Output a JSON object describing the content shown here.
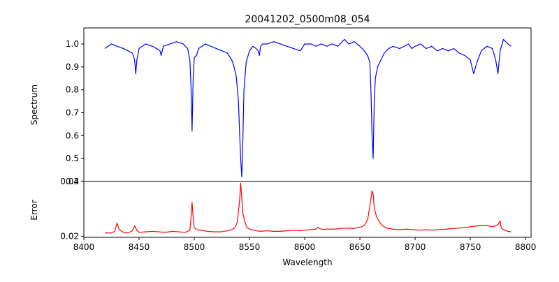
{
  "chart_data": [
    {
      "type": "line",
      "title": "20041202_0500m08_054",
      "ylabel": "Spectrum",
      "xlabel": "",
      "xlim": [
        8400,
        8805
      ],
      "ylim": [
        0.4,
        1.07
      ],
      "xticks": [
        8400,
        8450,
        8500,
        8550,
        8600,
        8650,
        8700,
        8750,
        8800
      ],
      "yticks": [
        0.4,
        0.5,
        0.6,
        0.7,
        0.8,
        0.9,
        1.0
      ],
      "ytick_labels": [
        "0.4",
        "0.5",
        "0.6",
        "0.7",
        "0.8",
        "0.9",
        "1.0"
      ],
      "grid": false,
      "series": [
        {
          "color": "#0000ff",
          "x": [
            8419,
            8425,
            8430,
            8436,
            8440,
            8444,
            8446,
            8447,
            8448,
            8450,
            8456,
            8462,
            8466,
            8469,
            8470,
            8472,
            8478,
            8484,
            8490,
            8494,
            8496,
            8497,
            8498,
            8499,
            8500,
            8502,
            8504,
            8507,
            8510,
            8515,
            8520,
            8525,
            8530,
            8534,
            8536,
            8538,
            8540,
            8541,
            8542,
            8543,
            8544,
            8545,
            8547,
            8550,
            8553,
            8556,
            8558,
            8559,
            8560,
            8562,
            8566,
            8572,
            8578,
            8584,
            8590,
            8596,
            8600,
            8606,
            8610,
            8615,
            8620,
            8625,
            8630,
            8636,
            8640,
            8645,
            8650,
            8654,
            8657,
            8659,
            8660,
            8661,
            8662,
            8663,
            8664,
            8666,
            8669,
            8672,
            8676,
            8680,
            8686,
            8690,
            8694,
            8697,
            8700,
            8705,
            8710,
            8715,
            8720,
            8725,
            8730,
            8735,
            8740,
            8745,
            8750,
            8753,
            8756,
            8760,
            8765,
            8770,
            8773,
            8775,
            8777,
            8780,
            8784,
            8787
          ],
          "values": [
            0.98,
            1.0,
            0.99,
            0.98,
            0.97,
            0.96,
            0.93,
            0.87,
            0.93,
            0.98,
            1.0,
            0.99,
            0.98,
            0.97,
            0.95,
            0.99,
            1.0,
            1.01,
            1.0,
            0.98,
            0.93,
            0.82,
            0.62,
            0.85,
            0.94,
            0.95,
            0.98,
            0.99,
            1.0,
            0.99,
            0.98,
            0.97,
            0.96,
            0.93,
            0.9,
            0.86,
            0.75,
            0.62,
            0.5,
            0.42,
            0.58,
            0.8,
            0.92,
            0.97,
            0.99,
            0.98,
            0.97,
            0.95,
            0.99,
            1.0,
            1.0,
            1.01,
            1.0,
            0.99,
            0.98,
            0.97,
            1.0,
            1.0,
            0.99,
            1.0,
            0.99,
            1.0,
            0.99,
            1.02,
            1.0,
            1.01,
            0.99,
            0.97,
            0.95,
            0.92,
            0.8,
            0.6,
            0.5,
            0.75,
            0.85,
            0.9,
            0.93,
            0.96,
            0.98,
            0.99,
            0.98,
            0.99,
            1.0,
            0.98,
            0.99,
            1.0,
            0.98,
            0.99,
            0.97,
            0.98,
            0.97,
            0.98,
            0.96,
            0.95,
            0.93,
            0.87,
            0.92,
            0.97,
            0.99,
            0.98,
            0.93,
            0.87,
            0.97,
            1.02,
            1.0,
            0.99
          ]
        }
      ]
    },
    {
      "type": "line",
      "title": "",
      "ylabel": "Error",
      "xlabel": "Wavelength",
      "xlim": [
        8400,
        8805
      ],
      "ylim": [
        0.0198,
        0.03
      ],
      "xticks": [
        8400,
        8450,
        8500,
        8550,
        8600,
        8650,
        8700,
        8750,
        8800
      ],
      "xtick_labels": [
        "8400",
        "8450",
        "8500",
        "8550",
        "8600",
        "8650",
        "8700",
        "8750",
        "8800"
      ],
      "yticks": [
        0.02,
        0.03
      ],
      "ytick_labels": [
        "0.02",
        "0.03"
      ],
      "grid": false,
      "series": [
        {
          "color": "#ff0000",
          "x": [
            8419,
            8425,
            8428,
            8430,
            8432,
            8436,
            8440,
            8444,
            8446,
            8448,
            8450,
            8456,
            8462,
            8468,
            8474,
            8480,
            8486,
            8492,
            8496,
            8497,
            8498,
            8499,
            8500,
            8502,
            8506,
            8512,
            8518,
            8524,
            8530,
            8534,
            8537,
            8539,
            8541,
            8542,
            8543,
            8544,
            8546,
            8548,
            8552,
            8556,
            8560,
            8566,
            8572,
            8578,
            8584,
            8590,
            8596,
            8600,
            8606,
            8610,
            8612,
            8616,
            8620,
            8626,
            8632,
            8638,
            8644,
            8650,
            8654,
            8657,
            8659,
            8661,
            8662,
            8663,
            8665,
            8667,
            8670,
            8674,
            8680,
            8686,
            8692,
            8698,
            8704,
            8710,
            8716,
            8722,
            8728,
            8734,
            8740,
            8746,
            8752,
            8758,
            8764,
            8770,
            8775,
            8777,
            8778,
            8780,
            8784,
            8787
          ],
          "values": [
            0.0206,
            0.0206,
            0.0209,
            0.0224,
            0.0212,
            0.0207,
            0.0206,
            0.021,
            0.0219,
            0.0211,
            0.0207,
            0.0208,
            0.0209,
            0.0208,
            0.0207,
            0.0209,
            0.0208,
            0.0207,
            0.0211,
            0.0233,
            0.0262,
            0.0235,
            0.0216,
            0.0212,
            0.0211,
            0.0209,
            0.0208,
            0.0208,
            0.021,
            0.0212,
            0.0216,
            0.0226,
            0.0264,
            0.0297,
            0.027,
            0.0242,
            0.0225,
            0.0215,
            0.0212,
            0.021,
            0.0209,
            0.021,
            0.0209,
            0.0209,
            0.021,
            0.0211,
            0.021,
            0.0211,
            0.0212,
            0.0213,
            0.0216,
            0.0212,
            0.0213,
            0.0213,
            0.0214,
            0.0215,
            0.0214,
            0.0216,
            0.022,
            0.023,
            0.0255,
            0.0283,
            0.0278,
            0.0252,
            0.0236,
            0.0228,
            0.022,
            0.0215,
            0.0213,
            0.0212,
            0.0213,
            0.0212,
            0.0211,
            0.0212,
            0.0211,
            0.0212,
            0.0213,
            0.0214,
            0.0215,
            0.0216,
            0.0218,
            0.0219,
            0.022,
            0.0217,
            0.0221,
            0.0228,
            0.0215,
            0.0212,
            0.0209,
            0.0208
          ]
        }
      ]
    }
  ]
}
